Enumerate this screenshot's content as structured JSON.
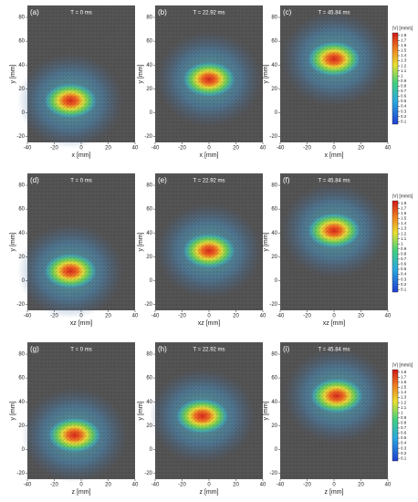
{
  "chart_data": [
    {
      "type": "vector-field",
      "annotation": "(a)",
      "title": "T = 0 ms",
      "xlabel": "x [mm]",
      "ylabel": "y [mm]",
      "xlim": [
        -40,
        40
      ],
      "ylim": [
        -25,
        90
      ],
      "xticks": [
        -40,
        -20,
        0,
        20,
        40
      ],
      "yticks": [
        -20,
        0,
        20,
        40,
        60,
        80
      ]
    },
    {
      "type": "vector-field",
      "annotation": "(b)",
      "title": "T = 22.92 ms",
      "xlabel": "x [mm]",
      "ylabel": "y [mm]",
      "xlim": [
        -40,
        40
      ],
      "ylim": [
        -25,
        90
      ],
      "xticks": [
        -40,
        -20,
        0,
        20,
        40
      ],
      "yticks": [
        -20,
        0,
        20,
        40,
        60,
        80
      ]
    },
    {
      "type": "vector-field",
      "annotation": "(c)",
      "title": "T = 45.84 ms",
      "xlabel": "x [mm]",
      "ylabel": "y [mm]",
      "xlim": [
        -40,
        40
      ],
      "ylim": [
        -25,
        90
      ],
      "xticks": [
        -40,
        -20,
        0,
        20,
        40
      ],
      "yticks": [
        -20,
        0,
        20,
        40,
        60,
        80
      ],
      "colorbar": {
        "title": "|V| [mm/s]",
        "lim": [
          0.05,
          1.85
        ],
        "ticks": [
          0.1,
          0.2,
          0.3,
          0.4,
          0.5,
          0.6,
          0.7,
          0.8,
          0.9,
          1,
          1.1,
          1.2,
          1.3,
          1.4,
          1.5,
          1.6,
          1.7,
          1.8
        ]
      }
    },
    {
      "type": "vector-field",
      "annotation": "(d)",
      "title": "T = 0 ms",
      "xlabel": "xz [mm]",
      "ylabel": "y [mm]",
      "xlim": [
        -40,
        40
      ],
      "ylim": [
        -25,
        90
      ],
      "xticks": [
        -40,
        -20,
        0,
        20,
        40
      ],
      "yticks": [
        -20,
        0,
        20,
        40,
        60,
        80
      ]
    },
    {
      "type": "vector-field",
      "annotation": "(e)",
      "title": "T = 22.92 ms",
      "xlabel": "xz [mm]",
      "ylabel": "y [mm]",
      "xlim": [
        -40,
        40
      ],
      "ylim": [
        -25,
        90
      ],
      "xticks": [
        -40,
        -20,
        0,
        20,
        40
      ],
      "yticks": [
        -20,
        0,
        20,
        40,
        60,
        80
      ]
    },
    {
      "type": "vector-field",
      "annotation": "(f)",
      "title": "T = 45.84 ms",
      "xlabel": "xz [mm]",
      "ylabel": "y [mm]",
      "xlim": [
        -40,
        40
      ],
      "ylim": [
        -25,
        90
      ],
      "xticks": [
        -40,
        -20,
        0,
        20,
        40
      ],
      "yticks": [
        -20,
        0,
        20,
        40,
        60,
        80
      ],
      "colorbar": {
        "title": "|V| [mm/s]",
        "lim": [
          0.05,
          1.85
        ],
        "ticks": [
          0.1,
          0.2,
          0.3,
          0.4,
          0.5,
          0.6,
          0.7,
          0.8,
          0.9,
          1,
          1.1,
          1.2,
          1.3,
          1.4,
          1.5,
          1.6,
          1.7,
          1.8
        ]
      }
    },
    {
      "type": "vector-field",
      "annotation": "(g)",
      "title": "T = 0 ms",
      "xlabel": "z [mm]",
      "ylabel": "y [mm]",
      "xlim": [
        -40,
        40
      ],
      "ylim": [
        -25,
        90
      ],
      "xticks": [
        -40,
        -20,
        0,
        20,
        40
      ],
      "yticks": [
        -20,
        0,
        20,
        40,
        60,
        80
      ]
    },
    {
      "type": "vector-field",
      "annotation": "(h)",
      "title": "T = 22.92 ms",
      "xlabel": "z [mm]",
      "ylabel": "y [mm]",
      "xlim": [
        -40,
        40
      ],
      "ylim": [
        -25,
        90
      ],
      "xticks": [
        -40,
        -20,
        0,
        20,
        40
      ],
      "yticks": [
        -20,
        0,
        20,
        40,
        60,
        80
      ]
    },
    {
      "type": "vector-field",
      "annotation": "(i)",
      "title": "T = 45.84 ms",
      "xlabel": "z [mm]",
      "ylabel": "y [mm]",
      "xlim": [
        -40,
        40
      ],
      "ylim": [
        -25,
        90
      ],
      "xticks": [
        -40,
        -20,
        0,
        20,
        40
      ],
      "yticks": [
        -20,
        0,
        20,
        40,
        60,
        80
      ],
      "colorbar": {
        "title": "|V| [mm/s]",
        "lim": [
          0.05,
          1.85
        ],
        "ticks": [
          0.1,
          0.2,
          0.3,
          0.4,
          0.5,
          0.6,
          0.7,
          0.8,
          0.9,
          1,
          1.1,
          1.2,
          1.3,
          1.4,
          1.5,
          1.6,
          1.7,
          1.8
        ]
      }
    }
  ]
}
